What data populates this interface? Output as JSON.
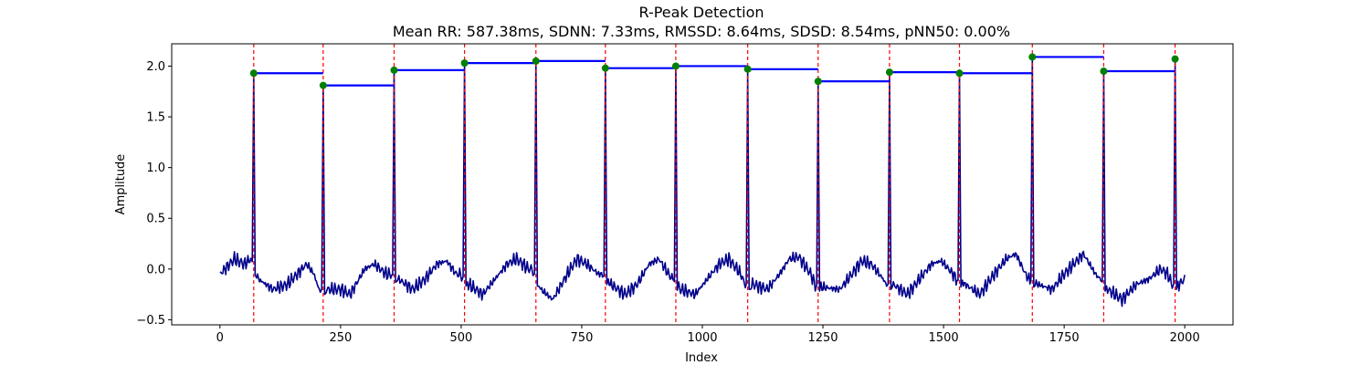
{
  "chart_data": {
    "type": "line",
    "title": "R-Peak Detection",
    "subtitle": "Mean RR: 587.38ms, SDNN: 7.33ms, RMSSD: 8.64ms, SDSD: 8.54ms, pNN50: 0.00%",
    "xlabel": "Index",
    "ylabel": "Amplitude",
    "xlim": [
      -100,
      2100
    ],
    "ylim": [
      -0.55,
      2.22
    ],
    "xticks": [
      0,
      250,
      500,
      750,
      1000,
      1250,
      1500,
      1750,
      2000
    ],
    "yticks": [
      -0.5,
      0.0,
      0.5,
      1.0,
      1.5,
      2.0
    ],
    "grid": false,
    "legend": "none",
    "colors": {
      "signal": "#00008b",
      "peak_marker": "#008000",
      "peak_line": "#ff0000",
      "rr_interval": "#0000ff"
    },
    "signal_length": 2000,
    "r_peaks": [
      {
        "index": 70,
        "amplitude": 1.93
      },
      {
        "index": 214,
        "amplitude": 1.81
      },
      {
        "index": 361,
        "amplitude": 1.96
      },
      {
        "index": 507,
        "amplitude": 2.03
      },
      {
        "index": 655,
        "amplitude": 2.05
      },
      {
        "index": 799,
        "amplitude": 1.98
      },
      {
        "index": 945,
        "amplitude": 2.0
      },
      {
        "index": 1094,
        "amplitude": 1.97
      },
      {
        "index": 1240,
        "amplitude": 1.85
      },
      {
        "index": 1388,
        "amplitude": 1.94
      },
      {
        "index": 1533,
        "amplitude": 1.93
      },
      {
        "index": 1684,
        "amplitude": 2.09
      },
      {
        "index": 1832,
        "amplitude": 1.95
      },
      {
        "index": 1980,
        "amplitude": 2.07
      }
    ],
    "series": [
      {
        "values": [
          [
            0,
            -0.05
          ],
          [
            30,
            0.1
          ],
          [
            50,
            0.05
          ],
          [
            65,
            0.1
          ],
          [
            80,
            -0.1
          ],
          [
            110,
            -0.2
          ],
          [
            140,
            -0.15
          ],
          [
            160,
            -0.05
          ],
          [
            180,
            0.05
          ],
          [
            195,
            -0.05
          ],
          [
            205,
            -0.2
          ],
          [
            225,
            -0.2
          ],
          [
            250,
            -0.2
          ],
          [
            270,
            -0.25
          ],
          [
            300,
            0.0
          ],
          [
            320,
            0.05
          ],
          [
            345,
            -0.05
          ],
          [
            355,
            -0.05
          ],
          [
            370,
            -0.1
          ],
          [
            400,
            -0.2
          ],
          [
            425,
            -0.1
          ],
          [
            450,
            0.05
          ],
          [
            470,
            0.08
          ],
          [
            490,
            -0.05
          ],
          [
            500,
            -0.05
          ],
          [
            515,
            -0.15
          ],
          [
            545,
            -0.25
          ],
          [
            570,
            -0.1
          ],
          [
            595,
            0.05
          ],
          [
            615,
            0.1
          ],
          [
            640,
            0.0
          ],
          [
            648,
            0.0
          ],
          [
            665,
            -0.2
          ],
          [
            690,
            -0.3
          ],
          [
            720,
            -0.05
          ],
          [
            740,
            0.1
          ],
          [
            760,
            0.05
          ],
          [
            785,
            -0.05
          ],
          [
            793,
            -0.05
          ],
          [
            810,
            -0.15
          ],
          [
            840,
            -0.25
          ],
          [
            865,
            -0.15
          ],
          [
            890,
            0.05
          ],
          [
            910,
            0.1
          ],
          [
            930,
            -0.05
          ],
          [
            938,
            -0.1
          ],
          [
            955,
            -0.2
          ],
          [
            985,
            -0.25
          ],
          [
            1010,
            -0.1
          ],
          [
            1035,
            0.05
          ],
          [
            1055,
            0.1
          ],
          [
            1080,
            -0.05
          ],
          [
            1088,
            -0.15
          ],
          [
            1105,
            -0.15
          ],
          [
            1135,
            -0.2
          ],
          [
            1160,
            -0.05
          ],
          [
            1180,
            0.1
          ],
          [
            1200,
            0.12
          ],
          [
            1225,
            -0.05
          ],
          [
            1233,
            -0.15
          ],
          [
            1250,
            -0.18
          ],
          [
            1285,
            -0.2
          ],
          [
            1310,
            -0.05
          ],
          [
            1330,
            0.08
          ],
          [
            1350,
            0.05
          ],
          [
            1375,
            -0.1
          ],
          [
            1381,
            -0.15
          ],
          [
            1395,
            -0.15
          ],
          [
            1425,
            -0.25
          ],
          [
            1450,
            -0.1
          ],
          [
            1475,
            0.05
          ],
          [
            1495,
            0.08
          ],
          [
            1520,
            -0.05
          ],
          [
            1526,
            -0.1
          ],
          [
            1545,
            -0.15
          ],
          [
            1575,
            -0.25
          ],
          [
            1605,
            -0.05
          ],
          [
            1630,
            0.1
          ],
          [
            1650,
            0.15
          ],
          [
            1670,
            -0.05
          ],
          [
            1677,
            -0.1
          ],
          [
            1695,
            -0.15
          ],
          [
            1725,
            -0.2
          ],
          [
            1750,
            -0.05
          ],
          [
            1770,
            0.05
          ],
          [
            1790,
            0.15
          ],
          [
            1815,
            -0.05
          ],
          [
            1825,
            -0.1
          ],
          [
            1840,
            -0.2
          ],
          [
            1870,
            -0.3
          ],
          [
            1900,
            -0.15
          ],
          [
            1925,
            -0.1
          ],
          [
            1950,
            0.0
          ],
          [
            1965,
            -0.05
          ],
          [
            1973,
            -0.15
          ],
          [
            1988,
            -0.15
          ],
          [
            2000,
            -0.1
          ]
        ]
      }
    ]
  }
}
